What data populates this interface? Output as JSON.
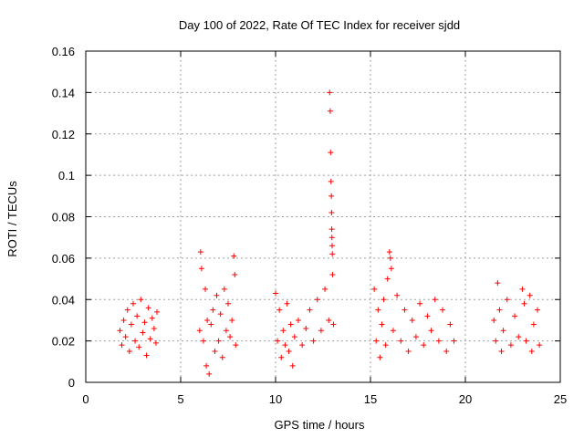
{
  "chart_data": {
    "type": "scatter",
    "title": "Day 100 of 2022, Rate Of TEC Index for receiver sjdd",
    "xlabel": "GPS time / hours",
    "ylabel": "ROTI / TECUs",
    "xlim": [
      0,
      25
    ],
    "ylim": [
      0,
      0.16
    ],
    "x_ticks": [
      0,
      5,
      10,
      15,
      20,
      25
    ],
    "x_tick_labels": [
      "0",
      "5",
      "10",
      "15",
      "20",
      "25"
    ],
    "y_ticks": [
      0,
      0.02,
      0.04,
      0.06,
      0.08,
      0.1,
      0.12,
      0.14,
      0.16
    ],
    "y_tick_labels": [
      "0",
      "0.02",
      "0.04",
      "0.06",
      "0.08",
      "0.1",
      "0.12",
      "0.14",
      "0.16"
    ],
    "grid": true,
    "marker": "+",
    "color": "#ff0000",
    "series": [
      {
        "name": "ROTI",
        "points": [
          [
            1.8,
            0.025
          ],
          [
            1.9,
            0.018
          ],
          [
            2.0,
            0.03
          ],
          [
            2.1,
            0.022
          ],
          [
            2.2,
            0.035
          ],
          [
            2.3,
            0.015
          ],
          [
            2.4,
            0.028
          ],
          [
            2.5,
            0.038
          ],
          [
            2.6,
            0.02
          ],
          [
            2.7,
            0.032
          ],
          [
            2.8,
            0.017
          ],
          [
            2.9,
            0.04
          ],
          [
            3.0,
            0.024
          ],
          [
            3.1,
            0.029
          ],
          [
            3.2,
            0.013
          ],
          [
            3.3,
            0.036
          ],
          [
            3.4,
            0.021
          ],
          [
            3.5,
            0.031
          ],
          [
            3.6,
            0.026
          ],
          [
            3.7,
            0.019
          ],
          [
            3.75,
            0.034
          ],
          [
            6.0,
            0.025
          ],
          [
            6.05,
            0.063
          ],
          [
            6.1,
            0.055
          ],
          [
            6.2,
            0.02
          ],
          [
            6.3,
            0.045
          ],
          [
            6.35,
            0.008
          ],
          [
            6.4,
            0.03
          ],
          [
            6.5,
            0.004
          ],
          [
            6.6,
            0.028
          ],
          [
            6.7,
            0.035
          ],
          [
            6.8,
            0.015
          ],
          [
            6.9,
            0.042
          ],
          [
            7.0,
            0.02
          ],
          [
            7.1,
            0.033
          ],
          [
            7.2,
            0.012
          ],
          [
            7.3,
            0.045
          ],
          [
            7.4,
            0.025
          ],
          [
            7.5,
            0.038
          ],
          [
            7.6,
            0.022
          ],
          [
            7.7,
            0.03
          ],
          [
            7.8,
            0.061
          ],
          [
            7.85,
            0.052
          ],
          [
            7.9,
            0.018
          ],
          [
            10.0,
            0.043
          ],
          [
            10.1,
            0.02
          ],
          [
            10.2,
            0.035
          ],
          [
            10.3,
            0.012
          ],
          [
            10.4,
            0.025
          ],
          [
            10.5,
            0.018
          ],
          [
            10.6,
            0.038
          ],
          [
            10.7,
            0.015
          ],
          [
            10.8,
            0.028
          ],
          [
            10.9,
            0.008
          ],
          [
            11.0,
            0.022
          ],
          [
            11.2,
            0.03
          ],
          [
            11.4,
            0.018
          ],
          [
            11.6,
            0.026
          ],
          [
            11.8,
            0.035
          ],
          [
            12.0,
            0.02
          ],
          [
            12.2,
            0.04
          ],
          [
            12.4,
            0.025
          ],
          [
            12.6,
            0.045
          ],
          [
            12.8,
            0.03
          ],
          [
            12.85,
            0.14
          ],
          [
            12.88,
            0.131
          ],
          [
            12.9,
            0.111
          ],
          [
            12.92,
            0.097
          ],
          [
            12.94,
            0.09
          ],
          [
            12.95,
            0.082
          ],
          [
            12.96,
            0.074
          ],
          [
            12.97,
            0.07
          ],
          [
            12.98,
            0.066
          ],
          [
            12.99,
            0.062
          ],
          [
            13.0,
            0.052
          ],
          [
            13.05,
            0.028
          ],
          [
            15.2,
            0.045
          ],
          [
            15.3,
            0.02
          ],
          [
            15.4,
            0.035
          ],
          [
            15.5,
            0.012
          ],
          [
            15.6,
            0.028
          ],
          [
            15.7,
            0.04
          ],
          [
            15.8,
            0.018
          ],
          [
            15.9,
            0.05
          ],
          [
            16.0,
            0.063
          ],
          [
            16.05,
            0.06
          ],
          [
            16.1,
            0.055
          ],
          [
            16.2,
            0.025
          ],
          [
            16.4,
            0.042
          ],
          [
            16.6,
            0.02
          ],
          [
            16.8,
            0.035
          ],
          [
            17.0,
            0.015
          ],
          [
            17.2,
            0.03
          ],
          [
            17.4,
            0.022
          ],
          [
            17.6,
            0.038
          ],
          [
            17.8,
            0.018
          ],
          [
            18.0,
            0.032
          ],
          [
            18.2,
            0.025
          ],
          [
            18.4,
            0.04
          ],
          [
            18.6,
            0.02
          ],
          [
            18.8,
            0.035
          ],
          [
            19.0,
            0.015
          ],
          [
            19.2,
            0.028
          ],
          [
            19.4,
            0.02
          ],
          [
            21.5,
            0.03
          ],
          [
            21.6,
            0.02
          ],
          [
            21.7,
            0.048
          ],
          [
            21.8,
            0.035
          ],
          [
            21.9,
            0.015
          ],
          [
            22.0,
            0.025
          ],
          [
            22.2,
            0.04
          ],
          [
            22.4,
            0.018
          ],
          [
            22.6,
            0.032
          ],
          [
            22.8,
            0.022
          ],
          [
            23.0,
            0.045
          ],
          [
            23.1,
            0.038
          ],
          [
            23.2,
            0.02
          ],
          [
            23.4,
            0.042
          ],
          [
            23.5,
            0.015
          ],
          [
            23.6,
            0.028
          ],
          [
            23.8,
            0.035
          ],
          [
            23.9,
            0.018
          ]
        ]
      }
    ]
  }
}
